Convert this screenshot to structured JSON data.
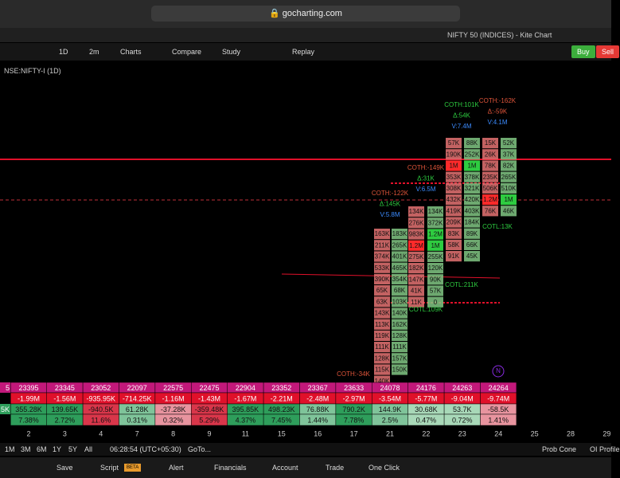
{
  "browser": {
    "url": "gocharting.com",
    "tab_title": "NIFTY 50 (INDICES) - Kite Chart"
  },
  "toolbar": {
    "interval": "1D",
    "timeframe": "2m",
    "charts": "Charts",
    "compare": "Compare",
    "study": "Study",
    "replay": "Replay",
    "buy": "Buy",
    "sell": "Sell"
  },
  "symbol": "NSE:NIFTY-I (1D)",
  "footprint": {
    "columns": [
      {
        "color": "#e57373",
        "cells": [
          "163K",
          "211K",
          "374K",
          "533K",
          "390K",
          "65K",
          "63K",
          "143K",
          "113K",
          "119K",
          "111K",
          "128K",
          "115K",
          "140K"
        ]
      },
      {
        "color": "#81c784",
        "cells": [
          "183K",
          "265K",
          "401K",
          "465K",
          "354K",
          "68K",
          "103K",
          "140K",
          "162K",
          "128K",
          "111K",
          "157K",
          "150K"
        ]
      },
      {
        "color": "#e57373",
        "cells": [
          "134K",
          "276K",
          "983K",
          "1.2M",
          "275K",
          "182K",
          "147K",
          "41K",
          "11K"
        ]
      },
      {
        "color": "#81c784",
        "cells": [
          "134K",
          "372K",
          "1.2M",
          "1M",
          "255K",
          "120K",
          "90K",
          "57K",
          "0"
        ]
      },
      {
        "color": "#e57373",
        "cells": [
          "57K",
          "190K",
          "1M",
          "353K",
          "308K",
          "432K",
          "419K",
          "209K",
          "83K",
          "58K",
          "91K"
        ]
      },
      {
        "color": "#81c784",
        "cells": [
          "88K",
          "252K",
          "1M",
          "378K",
          "321K",
          "420K",
          "403K",
          "184K",
          "89K",
          "66K",
          "45K"
        ]
      },
      {
        "color": "#e57373",
        "cells": [
          "15K",
          "26K",
          "78K",
          "235K",
          "506K",
          "1.2M",
          "76K"
        ]
      },
      {
        "color": "#81c784",
        "cells": [
          "52K",
          "37K",
          "82K",
          "265K",
          "510K",
          "1M",
          "46K"
        ]
      }
    ]
  },
  "annotations": [
    {
      "lines": [
        "COTH:101K",
        "Δ:54K",
        "V:7.4M"
      ]
    },
    {
      "lines": [
        "COTH:-162K",
        "Δ:-59K",
        "V:4.1M"
      ]
    },
    {
      "lines": [
        "COTH:-149K",
        "Δ:31K",
        "V:6.5M"
      ]
    },
    {
      "lines": [
        "COTH:-122K",
        "Δ:145K",
        "V:5.8M"
      ]
    },
    {
      "lines": [
        "COTL:13K"
      ]
    },
    {
      "lines": [
        "COTL:211K"
      ]
    },
    {
      "lines": [
        "COTL:109K"
      ]
    },
    {
      "lines": [
        "COTH:-34K"
      ]
    },
    {
      "lines": [
        "N"
      ]
    }
  ],
  "table": {
    "rows": [
      {
        "lead": "5",
        "cells": [
          "23395",
          "23345",
          "23052",
          "22097",
          "22575",
          "22475",
          "22904",
          "23352",
          "23367",
          "23633",
          "24078",
          "24176",
          "24263",
          "24264"
        ]
      },
      {
        "cells": [
          "-1.99M",
          "-1.56M",
          "-935.95K",
          "-714.25K",
          "-1.16M",
          "-1.43M",
          "-1.67M",
          "-2.21M",
          "-2.48M",
          "-2.97M",
          "-3.54M",
          "-5.77M",
          "-9.04M",
          "-9.74M"
        ]
      },
      {
        "lead": "5K",
        "cells": [
          "355.28K",
          "139.65K",
          "-940.5K",
          "61.28K",
          "-37.28K",
          "-359.48K",
          "395.85K",
          "498.23K",
          "76.88K",
          "790.2K",
          "144.9K",
          "30.68K",
          "53.7K",
          "-58.5K"
        ]
      },
      {
        "cells": [
          "7.38%",
          "2.72%",
          "11.6%",
          "0.31%",
          "0.32%",
          "5.29%",
          "4.37%",
          "7.45%",
          "1.44%",
          "7.78%",
          "2.5%",
          "0.47%",
          "0.72%",
          "1.41%"
        ]
      }
    ],
    "tones": [
      "#2e9e5b",
      "#2e9e5b",
      "#d9364a",
      "#7fc49a",
      "#e8949f",
      "#d9364a",
      "#2e9e5b",
      "#2e9e5b",
      "#7fc49a",
      "#2e9e5b",
      "#7fc49a",
      "#a8d8b8",
      "#a8d8b8",
      "#e8949f"
    ]
  },
  "dates": [
    "2",
    "3",
    "4",
    "7",
    "8",
    "9",
    "11",
    "15",
    "16",
    "17",
    "21",
    "22",
    "23",
    "24",
    "25",
    "28",
    "29"
  ],
  "ranges": [
    "1M",
    "3M",
    "6M",
    "1Y",
    "5Y",
    "All"
  ],
  "clock": "06:28:54 (UTC+05:30)",
  "goto": "GoTo...",
  "prob_cone": "Prob Cone",
  "oi_profile": "OI Profile",
  "footer": {
    "save": "Save",
    "script": "Script",
    "beta": "BETA",
    "alert": "Alert",
    "financials": "Financials",
    "account": "Account",
    "trade": "Trade",
    "one_click": "One Click"
  }
}
